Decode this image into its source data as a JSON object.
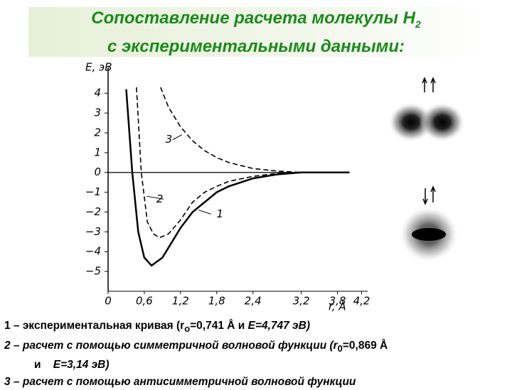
{
  "title": {
    "line1": "Сопоставление расчета молекулы H",
    "sub": "2",
    "line2": "с экспериментальными данными:"
  },
  "captions": [
    [
      "1 – экспериментальная кривая (",
      "r",
      "o",
      "=0,741 Å и ",
      "E",
      "=4,747 эВ)"
    ],
    [
      "2 – расчет с помощью симметричной волновой функции (r",
      "0",
      "=0,869 Å"
    ],
    [
      "и",
      "E",
      "=3,14 эВ)"
    ],
    [
      "3 – расчет с помощью антисимметричной волновой функции"
    ]
  ],
  "chart_data": {
    "type": "line",
    "ylabel": "E, эВ",
    "xlabel": "r, Å",
    "xlim": [
      0,
      4.3
    ],
    "ylim": [
      -6,
      5.3
    ],
    "xticks": [
      {
        "value": 0,
        "label": "0"
      },
      {
        "value": 0.6,
        "label": "0,6"
      },
      {
        "value": 1.2,
        "label": "1,2"
      },
      {
        "value": 1.8,
        "label": "1,8"
      },
      {
        "value": 2.4,
        "label": "2,4"
      },
      {
        "value": 3.2,
        "label": "3,2"
      },
      {
        "value": 3.8,
        "label": "3,8"
      },
      {
        "value": 4.2,
        "label": "4,2"
      }
    ],
    "yticks": [
      {
        "value": -5,
        "label": "−5"
      },
      {
        "value": -4,
        "label": "−4"
      },
      {
        "value": -3,
        "label": "−3"
      },
      {
        "value": -2,
        "label": "−2"
      },
      {
        "value": -1,
        "label": "−1"
      },
      0,
      1,
      2,
      3,
      4
    ],
    "series": [
      {
        "name": "1",
        "color": "#000000",
        "dashed": false,
        "x": [
          0.3,
          0.4,
          0.5,
          0.6,
          0.72,
          0.9,
          1.0,
          1.2,
          1.4,
          1.6,
          1.8,
          2.0,
          2.4,
          2.8,
          3.2,
          4.0
        ],
        "values": [
          4.2,
          0,
          -3,
          -4.3,
          -4.7,
          -4.3,
          -3.8,
          -2.8,
          -2.0,
          -1.5,
          -1.0,
          -0.7,
          -0.3,
          -0.1,
          0,
          0
        ]
      },
      {
        "name": "2",
        "color": "#000000",
        "dashed": true,
        "x": [
          0.47,
          0.55,
          0.65,
          0.75,
          0.85,
          1.0,
          1.2,
          1.4,
          1.6,
          1.8,
          2.0,
          2.4,
          2.8,
          3.2,
          4.0
        ],
        "values": [
          4.3,
          0,
          -2.5,
          -3.1,
          -3.3,
          -3.1,
          -2.4,
          -1.5,
          -1.0,
          -0.7,
          -0.45,
          -0.2,
          -0.05,
          0,
          0
        ]
      },
      {
        "name": "3",
        "color": "#000000",
        "dashed": true,
        "x": [
          0.87,
          1.0,
          1.2,
          1.4,
          1.6,
          1.8,
          2.0,
          2.4,
          2.8,
          3.2,
          4.0
        ],
        "values": [
          4.3,
          3.3,
          2.3,
          1.6,
          1.1,
          0.75,
          0.5,
          0.2,
          0.07,
          0,
          0
        ]
      }
    ]
  }
}
